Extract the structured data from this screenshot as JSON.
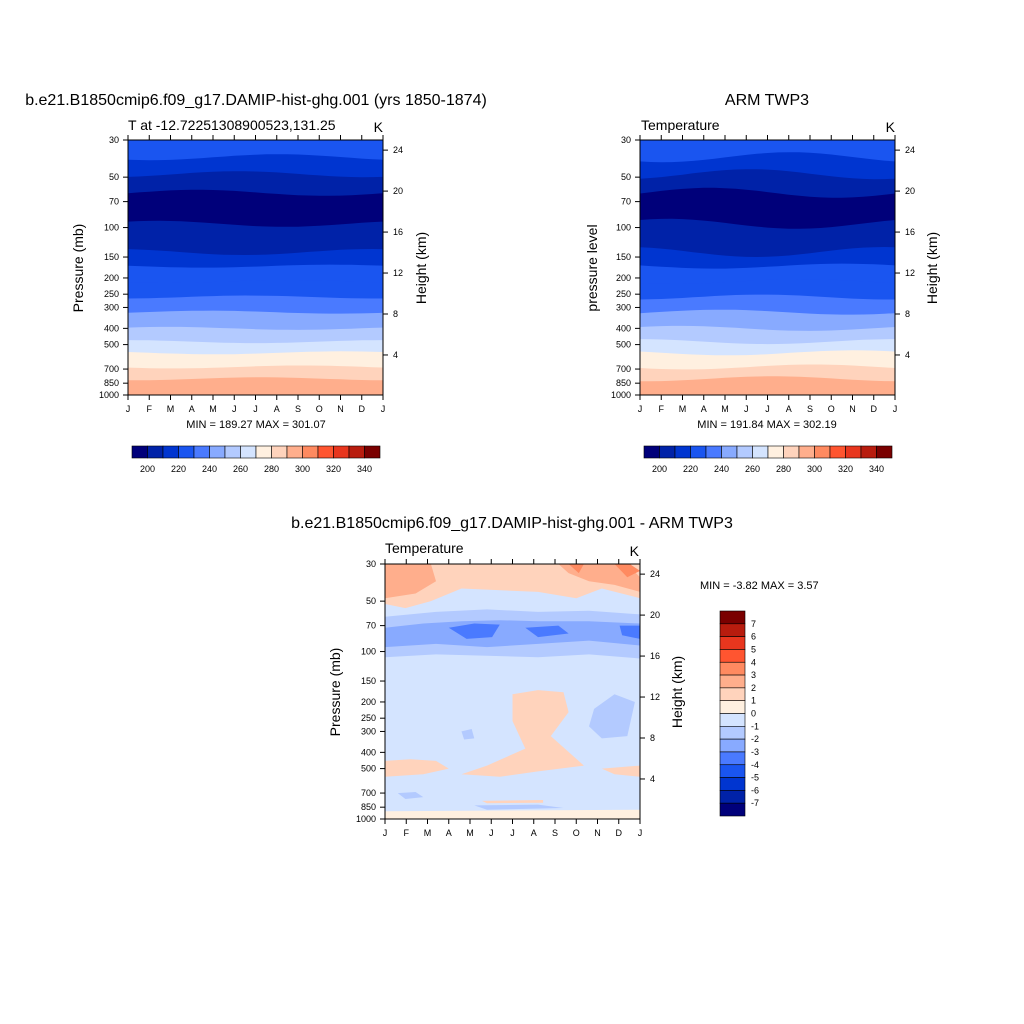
{
  "chart_data": [
    {
      "type": "heatmap",
      "title": "b.e21.B1850cmip6.f09_g17.DAMIP-hist-ghg.001 (yrs 1850-1874)",
      "subtitle_left": "T at -12.72251308900523,131.25",
      "subtitle_right": "K",
      "ylabel": "Pressure (mb)",
      "ylabel_right": "Height (km)",
      "x_ticks": [
        "J",
        "F",
        "M",
        "A",
        "M",
        "J",
        "J",
        "A",
        "S",
        "O",
        "N",
        "D",
        "J"
      ],
      "y_ticks": [
        "30",
        "50",
        "70",
        "100",
        "150",
        "200",
        "250",
        "300",
        "400",
        "500",
        "700",
        "850",
        "1000"
      ],
      "y_right_ticks": [
        "24",
        "20",
        "16",
        "12",
        "8",
        "4"
      ],
      "stats": "MIN = 189.27 MAX = 301.07",
      "colorbar_labels": [
        "200",
        "220",
        "240",
        "260",
        "280",
        "300",
        "320",
        "340"
      ],
      "layers_K": [
        220,
        210,
        200,
        196,
        200,
        210,
        220,
        228,
        236,
        245,
        253,
        262,
        270,
        280,
        290,
        297
      ]
    },
    {
      "type": "heatmap",
      "title": "ARM TWP3",
      "subtitle_left": "Temperature",
      "subtitle_right": "K",
      "ylabel": "pressure level",
      "ylabel_right": "Height (km)",
      "x_ticks": [
        "J",
        "F",
        "M",
        "A",
        "M",
        "J",
        "J",
        "A",
        "S",
        "O",
        "N",
        "D",
        "J"
      ],
      "y_ticks": [
        "30",
        "50",
        "70",
        "100",
        "150",
        "200",
        "250",
        "300",
        "400",
        "500",
        "700",
        "850",
        "1000"
      ],
      "y_right_ticks": [
        "24",
        "20",
        "16",
        "12",
        "8",
        "4"
      ],
      "stats": "MIN = 191.84 MAX = 302.19",
      "colorbar_labels": [
        "200",
        "220",
        "240",
        "260",
        "280",
        "300",
        "320",
        "340"
      ],
      "layers_K": [
        220,
        210,
        200,
        196,
        200,
        210,
        220,
        228,
        236,
        245,
        253,
        262,
        270,
        280,
        290,
        297
      ]
    },
    {
      "type": "heatmap",
      "title": "b.e21.B1850cmip6.f09_g17.DAMIP-hist-ghg.001 - ARM TWP3",
      "subtitle_left": "Temperature",
      "subtitle_right": "K",
      "ylabel": "Pressure (mb)",
      "ylabel_right": "Height (km)",
      "x_ticks": [
        "J",
        "F",
        "M",
        "A",
        "M",
        "J",
        "J",
        "A",
        "S",
        "O",
        "N",
        "D",
        "J"
      ],
      "y_ticks": [
        "30",
        "50",
        "70",
        "100",
        "150",
        "200",
        "250",
        "300",
        "400",
        "500",
        "700",
        "850",
        "1000"
      ],
      "y_right_ticks": [
        "24",
        "20",
        "16",
        "12",
        "8",
        "4"
      ],
      "stats": "MIN =  -3.82 MAX =   3.57",
      "colorbar_labels": [
        "7",
        "6",
        "5",
        "4",
        "3",
        "2",
        "1",
        "0",
        "-1",
        "-2",
        "-3",
        "-4",
        "-5",
        "-6",
        "-7"
      ]
    }
  ],
  "palette": {
    "temperature": [
      "#00007a",
      "#0022a8",
      "#0035d0",
      "#1a55f0",
      "#4a7aff",
      "#88aaff",
      "#b3caff",
      "#d4e4ff",
      "#fff0e0",
      "#ffd3bc",
      "#ffae8c",
      "#ff8a60",
      "#ff5530",
      "#e8361e",
      "#b81c0e",
      "#7a0000"
    ],
    "difference": [
      "#7a0000",
      "#b81c0e",
      "#e8361e",
      "#ff5530",
      "#ff8a60",
      "#ffae8c",
      "#ffd3bc",
      "#fff0e0",
      "#d4e4ff",
      "#b3caff",
      "#88aaff",
      "#4a7aff",
      "#1a55f0",
      "#0035d0",
      "#0022a8",
      "#00007a"
    ]
  }
}
